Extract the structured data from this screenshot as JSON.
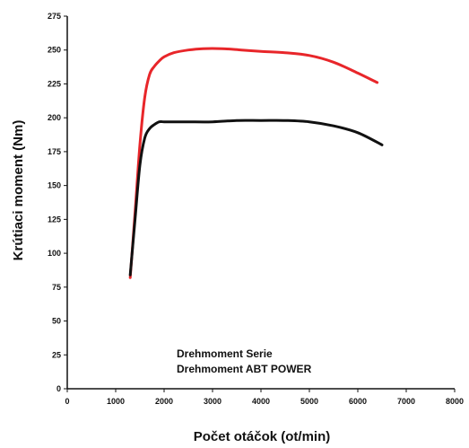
{
  "chart_data": {
    "type": "line",
    "xlabel": "Počet otáčok (ot/min)",
    "ylabel": "Krútiaci moment (Nm)",
    "xlim": [
      0,
      8000
    ],
    "ylim": [
      0,
      275
    ],
    "x_ticks": [
      0,
      1000,
      2000,
      3000,
      4000,
      5000,
      6000,
      7000,
      8000
    ],
    "y_ticks": [
      0,
      25,
      50,
      75,
      100,
      125,
      150,
      175,
      200,
      225,
      250,
      275
    ],
    "grid": false,
    "legend_position": "bottom-center",
    "legend": [
      "Drehmoment Serie",
      "Drehmoment ABT POWER"
    ],
    "series": [
      {
        "color": "#e8262a",
        "x": [
          1300,
          1400,
          1500,
          1600,
          1700,
          1800,
          1900,
          2000,
          2200,
          2500,
          2800,
          3200,
          3600,
          4000,
          4500,
          5000,
          5500,
          6000,
          6400
        ],
        "y": [
          82,
          130,
          180,
          215,
          232,
          238,
          242,
          245,
          248,
          250,
          251,
          251,
          250,
          249,
          248,
          246,
          241,
          233,
          226
        ]
      },
      {
        "color": "#111111",
        "x": [
          1300,
          1400,
          1500,
          1600,
          1700,
          1800,
          1900,
          2000,
          2200,
          2500,
          3000,
          3500,
          4000,
          4500,
          5000,
          5500,
          6000,
          6500
        ],
        "y": [
          84,
          125,
          165,
          185,
          192,
          195,
          197,
          197,
          197,
          197,
          197,
          198,
          198,
          198,
          197,
          194,
          189,
          180
        ]
      }
    ]
  }
}
